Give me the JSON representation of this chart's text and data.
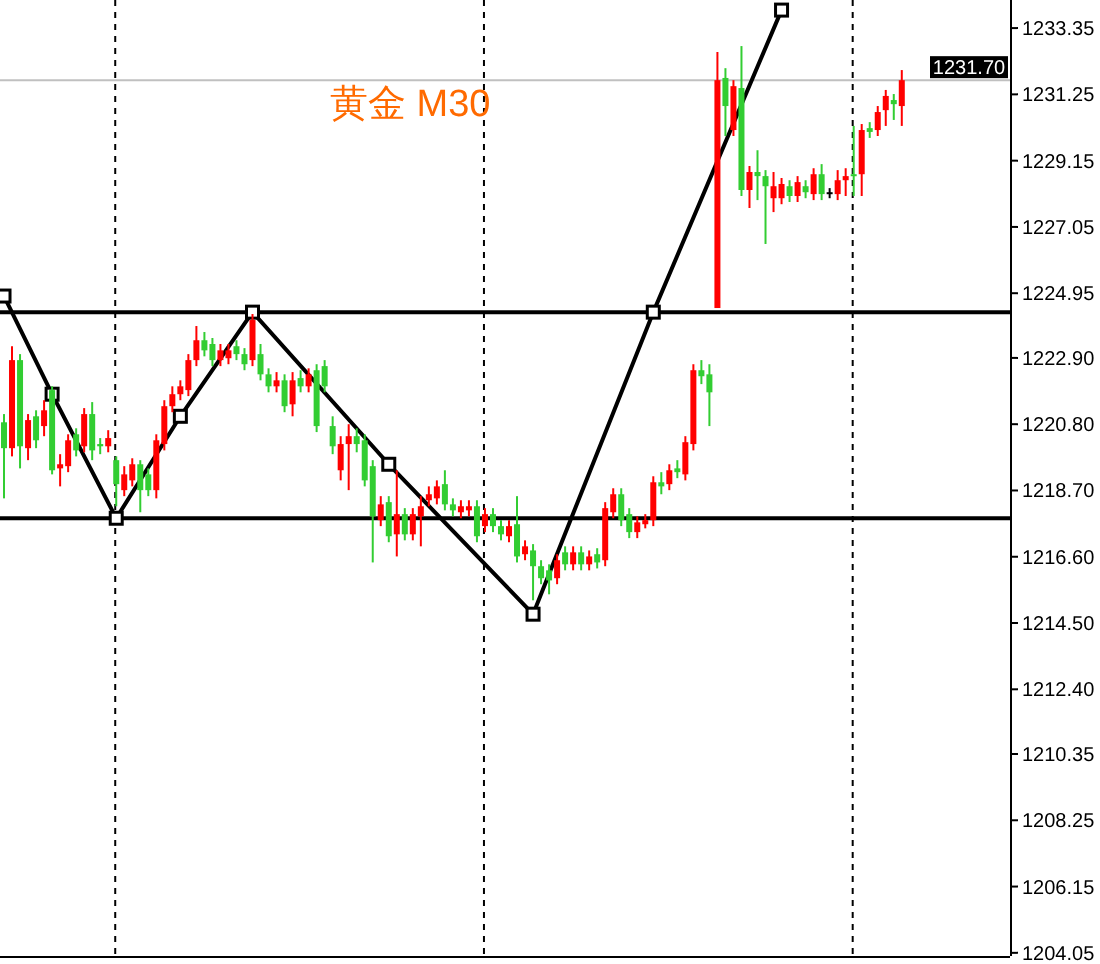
{
  "chart_data": {
    "type": "candlestick",
    "title": "黄金 M30",
    "tick_labels": "y",
    "grid": false,
    "ylim": [
      1203.95,
      1234.24
    ],
    "yticks": [
      {
        "value": 1233.35,
        "label": "1233.35"
      },
      {
        "value": 1231.25,
        "label": "1231.25"
      },
      {
        "value": 1229.15,
        "label": "1229.15"
      },
      {
        "value": 1227.05,
        "label": "1227.05"
      },
      {
        "value": 1224.95,
        "label": "1224.95"
      },
      {
        "value": 1222.9,
        "label": "1222.90"
      },
      {
        "value": 1220.8,
        "label": "1220.80"
      },
      {
        "value": 1218.7,
        "label": "1218.70"
      },
      {
        "value": 1216.6,
        "label": "1216.60"
      },
      {
        "value": 1214.5,
        "label": "1214.50"
      },
      {
        "value": 1212.4,
        "label": "1212.40"
      },
      {
        "value": 1210.35,
        "label": "1210.35"
      },
      {
        "value": 1208.25,
        "label": "1208.25"
      },
      {
        "value": 1206.15,
        "label": "1206.15"
      },
      {
        "value": 1204.05,
        "label": "1204.05"
      }
    ],
    "categories": [
      null,
      null,
      null,
      null,
      null,
      null,
      null,
      null,
      null,
      null,
      null,
      null,
      null,
      null,
      null,
      null,
      null,
      null,
      null,
      null,
      null,
      null,
      null,
      null,
      null,
      null,
      null,
      null,
      null,
      null,
      null,
      null,
      null,
      null,
      null,
      null,
      null,
      null,
      null,
      null,
      null,
      null,
      null,
      null,
      null,
      null,
      null,
      null,
      null,
      null,
      null,
      null,
      null,
      null,
      null,
      null,
      null,
      null,
      null,
      null,
      null,
      null,
      null,
      null,
      null,
      null,
      null,
      null,
      null,
      null,
      null,
      null,
      null,
      null,
      null,
      null,
      null,
      null,
      null,
      null,
      null,
      null,
      null,
      null,
      null,
      null,
      null,
      null,
      null,
      null,
      null,
      null,
      null,
      null,
      null,
      null,
      null,
      null,
      null,
      null,
      null,
      null,
      null,
      null,
      null,
      null,
      null,
      null,
      null,
      null,
      null,
      null,
      null,
      null,
      null,
      null,
      null,
      null,
      null,
      null,
      null,
      null,
      null,
      null,
      null,
      null
    ],
    "ohlc": [
      [
        1220.86,
        1221.12,
        1218.45,
        1220.04
      ],
      [
        1220.04,
        1223.27,
        1219.78,
        1222.83
      ],
      [
        1222.83,
        1223.02,
        1219.4,
        1220.1
      ],
      [
        1220.04,
        1221.12,
        1219.66,
        1220.93
      ],
      [
        1221.05,
        1221.24,
        1220.04,
        1220.29
      ],
      [
        1220.74,
        1221.56,
        1220.42,
        1221.24
      ],
      [
        1221.88,
        1222.0,
        1219.21,
        1219.34
      ],
      [
        1219.4,
        1219.85,
        1218.83,
        1219.53
      ],
      [
        1219.47,
        1220.48,
        1219.28,
        1220.29
      ],
      [
        1220.48,
        1220.67,
        1219.78,
        1219.97
      ],
      [
        1220.1,
        1221.31,
        1219.91,
        1221.12
      ],
      [
        1221.12,
        1221.5,
        1219.66,
        1219.97
      ],
      [
        1220.17,
        1220.36,
        1219.85,
        1220.1
      ],
      [
        1220.1,
        1220.61,
        1219.91,
        1220.36
      ],
      [
        1219.66,
        1219.78,
        1218.2,
        1218.9
      ],
      [
        1218.71,
        1219.47,
        1218.52,
        1219.21
      ],
      [
        1219.02,
        1219.72,
        1218.83,
        1219.53
      ],
      [
        1219.53,
        1219.66,
        1218.01,
        1218.71
      ],
      [
        1219.21,
        1219.4,
        1218.52,
        1218.71
      ],
      [
        1218.71,
        1220.48,
        1218.45,
        1220.29
      ],
      [
        1220.17,
        1221.56,
        1219.97,
        1221.37
      ],
      [
        1221.37,
        1222.0,
        1221.18,
        1221.75
      ],
      [
        1221.75,
        1222.19,
        1221.56,
        1222.0
      ],
      [
        1221.88,
        1223.02,
        1221.69,
        1222.83
      ],
      [
        1222.83,
        1223.91,
        1222.64,
        1223.46
      ],
      [
        1223.46,
        1223.72,
        1222.95,
        1223.14
      ],
      [
        1223.34,
        1223.53,
        1222.64,
        1222.83
      ],
      [
        1222.83,
        1223.34,
        1222.64,
        1223.14
      ],
      [
        1222.89,
        1223.34,
        1222.7,
        1223.14
      ],
      [
        1223.27,
        1223.46,
        1222.83,
        1223.02
      ],
      [
        1223.02,
        1223.21,
        1222.51,
        1222.7
      ],
      [
        1222.83,
        1224.29,
        1222.64,
        1224.1
      ],
      [
        1223.02,
        1223.34,
        1222.19,
        1222.38
      ],
      [
        1222.38,
        1222.57,
        1221.81,
        1222.0
      ],
      [
        1222.0,
        1222.45,
        1221.81,
        1222.19
      ],
      [
        1222.19,
        1222.38,
        1221.18,
        1221.37
      ],
      [
        1221.43,
        1222.45,
        1221.05,
        1222.19
      ],
      [
        1222.26,
        1222.51,
        1221.81,
        1222.0
      ],
      [
        1222.0,
        1222.57,
        1221.81,
        1222.38
      ],
      [
        1222.51,
        1222.7,
        1220.55,
        1220.74
      ],
      [
        1222.64,
        1222.83,
        1221.81,
        1222.0
      ],
      [
        1220.74,
        1221.05,
        1219.85,
        1220.1
      ],
      [
        1219.34,
        1220.42,
        1219.02,
        1220.17
      ],
      [
        1220.17,
        1220.8,
        1218.71,
        1220.42
      ],
      [
        1220.42,
        1220.67,
        1219.91,
        1220.17
      ],
      [
        1220.29,
        1220.48,
        1218.83,
        1219.02
      ],
      [
        1219.47,
        1219.66,
        1216.42,
        1217.88
      ],
      [
        1217.76,
        1218.52,
        1217.57,
        1218.26
      ],
      [
        1218.33,
        1218.52,
        1217.06,
        1217.25
      ],
      [
        1217.31,
        1219.34,
        1216.61,
        1217.95
      ],
      [
        1217.95,
        1218.14,
        1217.12,
        1217.31
      ],
      [
        1217.31,
        1218.14,
        1217.12,
        1217.95
      ],
      [
        1217.88,
        1218.52,
        1216.93,
        1218.2
      ],
      [
        1218.39,
        1218.83,
        1218.2,
        1218.58
      ],
      [
        1218.45,
        1219.02,
        1218.26,
        1218.83
      ],
      [
        1218.9,
        1219.34,
        1218.07,
        1218.26
      ],
      [
        1218.26,
        1218.45,
        1217.88,
        1218.07
      ],
      [
        1218.01,
        1218.39,
        1217.82,
        1218.2
      ],
      [
        1218.07,
        1218.39,
        1217.88,
        1218.2
      ],
      [
        1218.2,
        1218.39,
        1217.06,
        1217.25
      ],
      [
        1217.57,
        1218.14,
        1217.38,
        1217.95
      ],
      [
        1217.95,
        1218.14,
        1217.38,
        1217.57
      ],
      [
        1217.57,
        1217.76,
        1217.12,
        1217.31
      ],
      [
        1217.25,
        1217.76,
        1217.06,
        1217.57
      ],
      [
        1217.63,
        1218.52,
        1216.42,
        1216.61
      ],
      [
        1216.68,
        1217.12,
        1216.49,
        1216.93
      ],
      [
        1216.8,
        1217.0,
        1215.22,
        1216.3
      ],
      [
        1216.3,
        1216.49,
        1215.73,
        1215.92
      ],
      [
        1216.17,
        1216.36,
        1215.41,
        1215.85
      ],
      [
        1215.92,
        1216.68,
        1215.73,
        1216.49
      ],
      [
        1216.74,
        1216.93,
        1216.17,
        1216.36
      ],
      [
        1216.36,
        1216.93,
        1216.17,
        1216.74
      ],
      [
        1216.74,
        1216.93,
        1216.17,
        1216.36
      ],
      [
        1216.36,
        1216.8,
        1216.17,
        1216.61
      ],
      [
        1216.68,
        1216.87,
        1216.23,
        1216.42
      ],
      [
        1216.49,
        1218.33,
        1216.3,
        1218.14
      ],
      [
        1218.01,
        1218.77,
        1217.82,
        1218.58
      ],
      [
        1218.58,
        1218.77,
        1217.57,
        1217.76
      ],
      [
        1217.95,
        1218.14,
        1217.19,
        1217.38
      ],
      [
        1217.38,
        1217.88,
        1217.19,
        1217.69
      ],
      [
        1217.63,
        1217.95,
        1217.5,
        1217.76
      ],
      [
        1217.76,
        1219.15,
        1217.57,
        1218.96
      ],
      [
        1218.96,
        1219.28,
        1218.58,
        1218.83
      ],
      [
        1218.9,
        1219.53,
        1218.71,
        1219.34
      ],
      [
        1219.4,
        1219.66,
        1219.09,
        1219.28
      ],
      [
        1219.21,
        1220.42,
        1219.02,
        1220.23
      ],
      [
        1220.17,
        1222.7,
        1219.97,
        1222.51
      ],
      [
        1222.51,
        1222.83,
        1222.07,
        1222.32
      ],
      [
        1222.38,
        1222.7,
        1220.74,
        1221.81
      ],
      [
        1224.48,
        1232.59,
        1224.48,
        1231.7
      ],
      [
        1231.77,
        1232.08,
        1229.93,
        1230.88
      ],
      [
        1230.12,
        1231.7,
        1229.93,
        1231.51
      ],
      [
        1231.45,
        1232.78,
        1228.03,
        1228.22
      ],
      [
        1228.22,
        1228.98,
        1227.65,
        1228.79
      ],
      [
        1228.79,
        1229.48,
        1227.9,
        1228.66
      ],
      [
        1228.66,
        1228.85,
        1226.51,
        1228.34
      ],
      [
        1227.96,
        1228.79,
        1227.52,
        1228.34
      ],
      [
        1227.96,
        1228.6,
        1227.77,
        1228.41
      ],
      [
        1228.34,
        1228.53,
        1227.84,
        1228.03
      ],
      [
        1228.03,
        1228.66,
        1227.84,
        1228.47
      ],
      [
        1228.34,
        1228.53,
        1227.96,
        1228.15
      ],
      [
        1228.09,
        1228.91,
        1227.9,
        1228.72
      ],
      [
        1228.72,
        1229.04,
        1227.9,
        1228.09
      ],
      [
        1228.15,
        1228.28,
        1227.96,
        1228.15
      ],
      [
        1228.09,
        1228.85,
        1227.9,
        1228.53
      ],
      [
        1228.53,
        1228.91,
        1228.03,
        1228.66
      ],
      [
        1228.72,
        1230.25,
        1228.03,
        1228.66
      ],
      [
        1228.72,
        1230.31,
        1228.03,
        1230.12
      ],
      [
        1230.18,
        1230.37,
        1229.87,
        1230.06
      ],
      [
        1230.12,
        1230.88,
        1229.93,
        1230.69
      ],
      [
        1230.75,
        1231.39,
        1230.25,
        1231.2
      ],
      [
        1231.07,
        1231.26,
        1230.44,
        1230.94
      ],
      [
        1230.88,
        1232.02,
        1230.25,
        1231.7
      ],
      null,
      null,
      null,
      null,
      null,
      null,
      null,
      null,
      null,
      null,
      null,
      null,
      null
    ],
    "colors": [
      "#32cd32",
      "#ff0000",
      "#32cd32",
      "#ff0000",
      "#32cd32",
      "#ff0000",
      "#32cd32",
      "#ff0000",
      "#ff0000",
      "#32cd32",
      "#ff0000",
      "#32cd32",
      "#32cd32",
      "#ff0000",
      "#32cd32",
      "#ff0000",
      "#ff0000",
      "#32cd32",
      "#32cd32",
      "#ff0000",
      "#ff0000",
      "#ff0000",
      "#ff0000",
      "#ff0000",
      "#ff0000",
      "#32cd32",
      "#32cd32",
      "#ff0000",
      "#ff0000",
      "#32cd32",
      "#32cd32",
      "#ff0000",
      "#32cd32",
      "#32cd32",
      "#ff0000",
      "#32cd32",
      "#ff0000",
      "#32cd32",
      "#ff0000",
      "#32cd32",
      "#32cd32",
      "#32cd32",
      "#ff0000",
      "#ff0000",
      "#32cd32",
      "#32cd32",
      "#32cd32",
      "#ff0000",
      "#32cd32",
      "#ff0000",
      "#32cd32",
      "#ff0000",
      "#ff0000",
      "#ff0000",
      "#ff0000",
      "#32cd32",
      "#32cd32",
      "#ff0000",
      "#ff0000",
      "#32cd32",
      "#ff0000",
      "#32cd32",
      "#32cd32",
      "#ff0000",
      "#32cd32",
      "#ff0000",
      "#32cd32",
      "#32cd32",
      "#32cd32",
      "#ff0000",
      "#32cd32",
      "#ff0000",
      "#32cd32",
      "#ff0000",
      "#32cd32",
      "#ff0000",
      "#ff0000",
      "#32cd32",
      "#32cd32",
      "#ff0000",
      "#ff0000",
      "#ff0000",
      "#32cd32",
      "#ff0000",
      "#32cd32",
      "#ff0000",
      "#ff0000",
      "#32cd32",
      "#32cd32",
      "#ff0000",
      "#32cd32",
      "#ff0000",
      "#32cd32",
      "#ff0000",
      "#32cd32",
      "#32cd32",
      "#ff0000",
      "#ff0000",
      "#32cd32",
      "#ff0000",
      "#32cd32",
      "#ff0000",
      "#32cd32",
      "#000000",
      "#ff0000",
      "#ff0000",
      "#32cd32",
      "#ff0000",
      "#32cd32",
      "#ff0000",
      "#ff0000",
      "#32cd32",
      "#ff0000",
      null,
      null,
      null,
      null,
      null,
      null,
      null,
      null,
      null,
      null,
      null,
      null,
      null
    ],
    "series": [
      {
        "type": "line",
        "color": "#000000",
        "marker": "square",
        "values": [
          1224.86,
          null,
          null,
          null,
          null,
          null,
          1221.75,
          null,
          null,
          null,
          null,
          null,
          null,
          null,
          1217.82,
          null,
          null,
          null,
          null,
          null,
          null,
          null,
          1221.05,
          null,
          null,
          null,
          null,
          null,
          null,
          null,
          null,
          1224.35,
          null,
          null,
          null,
          null,
          null,
          null,
          null,
          null,
          null,
          null,
          null,
          null,
          null,
          null,
          null,
          null,
          1219.53,
          null,
          null,
          null,
          null,
          null,
          null,
          null,
          null,
          null,
          null,
          null,
          null,
          null,
          null,
          null,
          null,
          null,
          1214.78,
          null,
          null,
          null,
          null,
          null,
          null,
          null,
          null,
          null,
          null,
          null,
          null,
          null,
          null,
          1224.35,
          null,
          null,
          null,
          null,
          null,
          null,
          null,
          null,
          null,
          null,
          null,
          null,
          null,
          null,
          null,
          1233.92,
          null,
          null,
          null,
          null,
          null,
          null,
          null,
          null,
          null,
          null,
          null,
          null,
          null,
          null,
          null,
          null,
          null,
          null,
          null,
          null,
          null,
          null,
          null,
          null,
          null,
          null,
          null,
          null
        ]
      }
    ],
    "ref_lines": [
      {
        "axis": "y",
        "value": 1224.35,
        "color": "#000000"
      },
      {
        "axis": "y",
        "value": 1217.82,
        "color": "#000000"
      },
      {
        "axis": "y",
        "value": 1231.7,
        "label": "1231.70",
        "color": "#c0c0c0"
      }
    ]
  }
}
